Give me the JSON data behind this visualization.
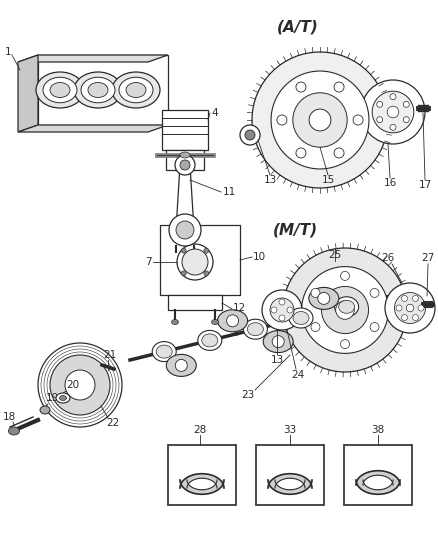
{
  "bg_color": "#ffffff",
  "line_color": "#2a2a2a",
  "labels": {
    "at": "(A/T)",
    "mt": "(M/T)"
  },
  "part_numbers": [
    1,
    4,
    7,
    10,
    11,
    12,
    13,
    15,
    16,
    17,
    18,
    19,
    20,
    21,
    22,
    23,
    24,
    25,
    26,
    27,
    28,
    33,
    38
  ]
}
